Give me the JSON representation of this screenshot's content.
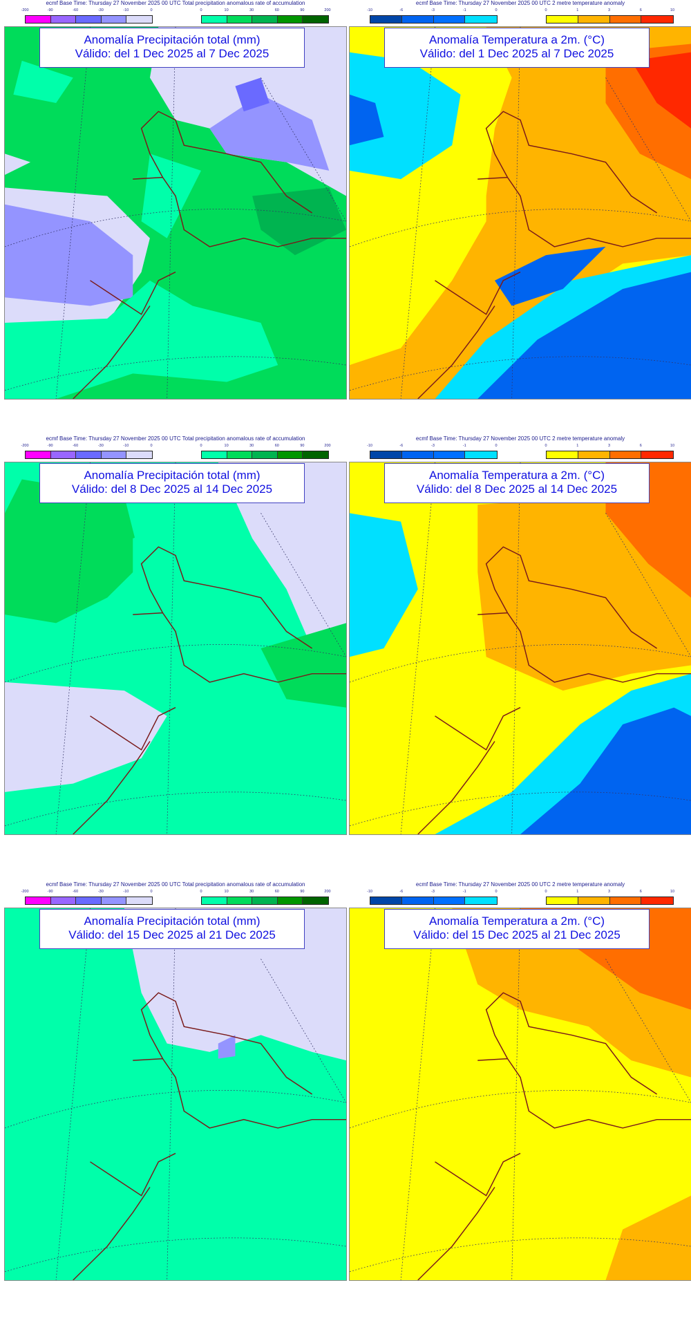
{
  "legends": {
    "precip": {
      "base_time": "ecmf  Base Time: Thursday 27 November 2025 00 UTC Total precipitation anomalous rate of accumulation",
      "neg_ticks": [
        "-200",
        "-90",
        "-60",
        "-30",
        "-10",
        "0"
      ],
      "pos_ticks": [
        "0",
        "10",
        "30",
        "60",
        "90",
        "200"
      ],
      "neg_colors": [
        "#ff00ff",
        "#9966ff",
        "#6a6aff",
        "#9494ff",
        "#dcdcfa"
      ],
      "pos_colors": [
        "#00ffaa",
        "#00dc5a",
        "#00b450",
        "#009600",
        "#006400"
      ]
    },
    "temp": {
      "base_time": "ecmf  Base Time: Thursday 27 November 2025 00 UTC 2 metre temperature anomaly",
      "neg_ticks": [
        "-10",
        "-6",
        "-3",
        "-1",
        "0"
      ],
      "pos_ticks": [
        "0",
        "1",
        "3",
        "6",
        "10"
      ],
      "neg_colors": [
        "#0046a8",
        "#0064f0",
        "#0070ff",
        "#00e0ff"
      ],
      "pos_colors": [
        "#ffff00",
        "#ffb400",
        "#ff6e00",
        "#ff2800"
      ]
    }
  },
  "panels": [
    {
      "type": "precip",
      "title": "Anomalía Precipitación total (mm)",
      "valid": "Válido: del 1 Dec 2025 al 7 Dec 2025"
    },
    {
      "type": "temp",
      "title": "Anomalía Temperatura a 2m. (°C)",
      "valid": "Válido: del 1 Dec 2025 al 7 Dec 2025"
    },
    {
      "type": "precip",
      "title": "Anomalía Precipitación total (mm)",
      "valid": "Válido: del 8 Dec 2025 al 14 Dec 2025"
    },
    {
      "type": "temp",
      "title": "Anomalía Temperatura a 2m. (°C)",
      "valid": "Válido: del 8 Dec 2025 al 14 Dec 2025"
    },
    {
      "type": "precip",
      "title": "Anomalía Precipitación total (mm)",
      "valid": "Válido: del 15 Dec 2025 al 21 Dec 2025"
    },
    {
      "type": "temp",
      "title": "Anomalía Temperatura a 2m. (°C)",
      "valid": "Válido: del 15 Dec 2025 al 21 Dec 2025"
    }
  ]
}
